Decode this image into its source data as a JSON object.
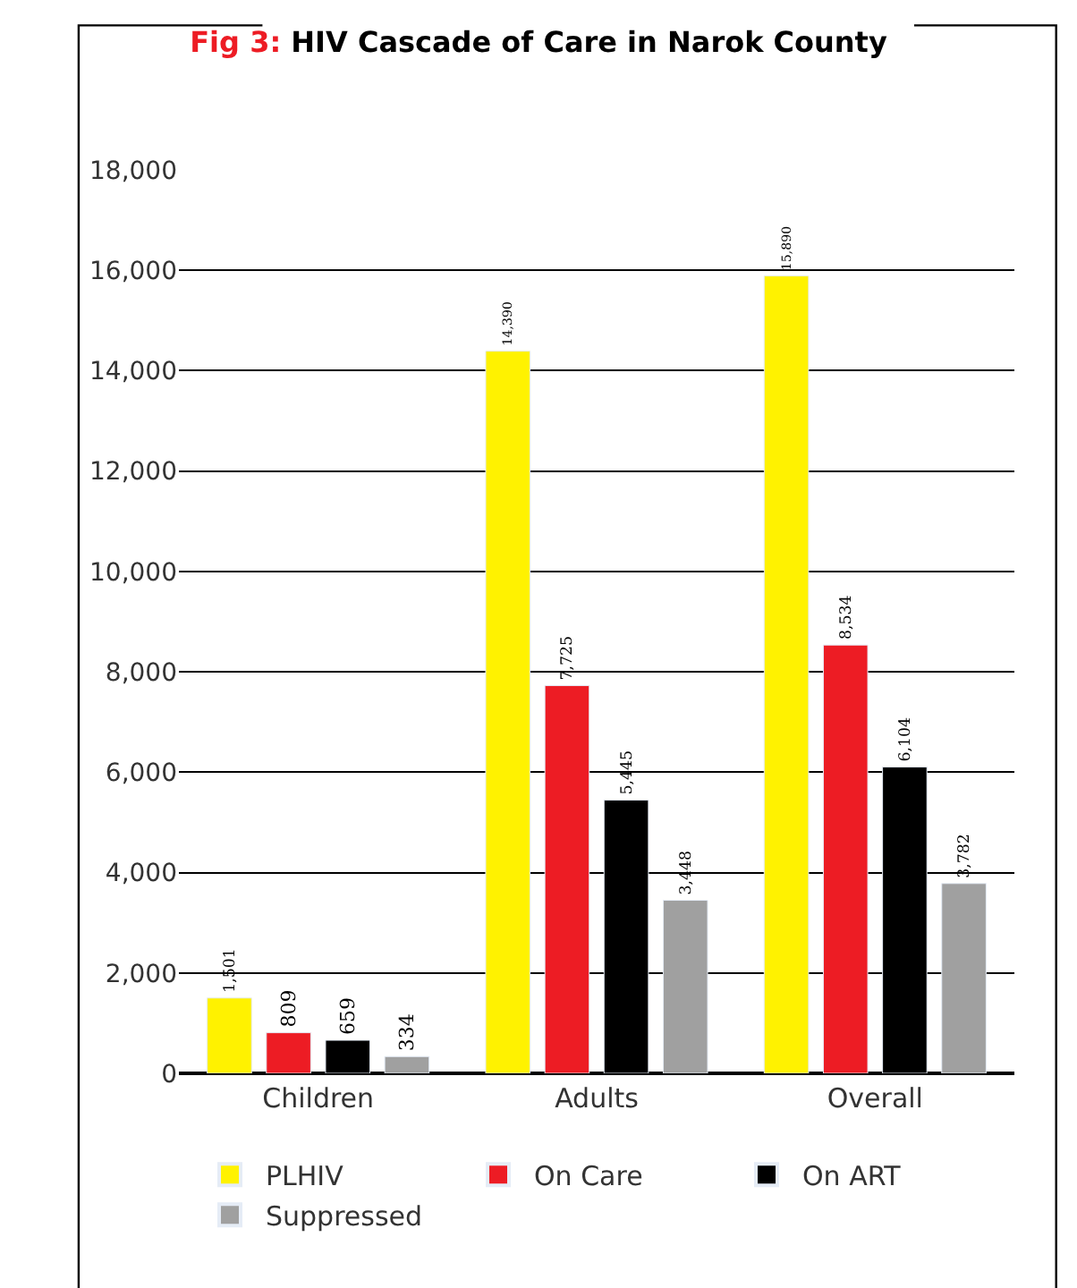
{
  "chart_data": {
    "type": "bar",
    "title": "Fig 3: HIV Cascade of Care in Narok County",
    "categories": [
      "Children",
      "Adults",
      "Overall"
    ],
    "series": [
      {
        "name": "PLHIV",
        "color": "#fff200",
        "values": [
          1501,
          14390,
          15890
        ],
        "value_labels": [
          "1,501",
          "14,390",
          "15,890"
        ]
      },
      {
        "name": "On Care",
        "color": "#ed1c24",
        "values": [
          809,
          7725,
          8534
        ],
        "value_labels": [
          "809",
          "7,725",
          "8,534"
        ]
      },
      {
        "name": "On ART",
        "color": "#000000",
        "values": [
          659,
          5445,
          6104
        ],
        "value_labels": [
          "659",
          "5,445",
          "6,104"
        ]
      },
      {
        "name": "Suppressed",
        "color": "#a0a0a0",
        "values": [
          334,
          3448,
          3782
        ],
        "value_labels": [
          "334",
          "3,448",
          "3,782"
        ]
      }
    ],
    "ylim": [
      0,
      18000
    ],
    "yticks": [
      {
        "value": 0,
        "label": "0"
      },
      {
        "value": 2000,
        "label": "2,000"
      },
      {
        "value": 4000,
        "label": "4,000"
      },
      {
        "value": 6000,
        "label": "6,000"
      },
      {
        "value": 8000,
        "label": "8,000"
      },
      {
        "value": 10000,
        "label": "10,000"
      },
      {
        "value": 12000,
        "label": "12,000"
      },
      {
        "value": 14000,
        "label": "14,000"
      },
      {
        "value": 16000,
        "label": "16,000"
      },
      {
        "value": 18000,
        "label": "18,000"
      }
    ],
    "grid": "y",
    "legend": "bottom"
  }
}
